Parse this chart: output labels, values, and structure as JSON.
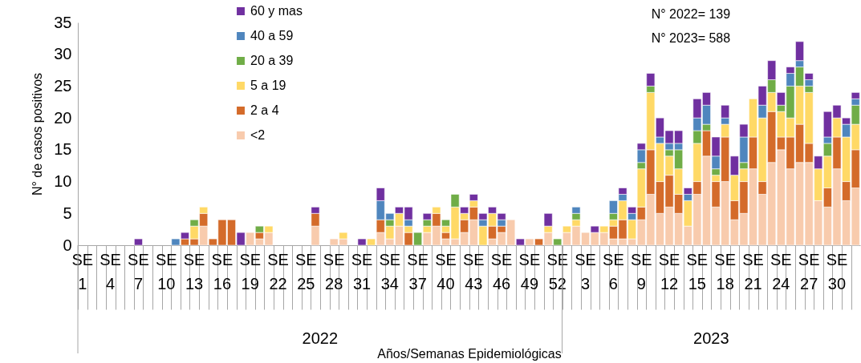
{
  "chart_data": {
    "type": "bar",
    "stacked": true,
    "ylabel": "N° de casos positivos",
    "xlabel": "Años/Semanas Epidemiológicas",
    "annotations": [
      "N° 2022= 139",
      "N° 2023= 588",
      "2022",
      "2023"
    ],
    "categories": [
      "SE 1",
      null,
      null,
      "SE 4",
      null,
      null,
      "SE 7",
      null,
      null,
      "SE 10",
      null,
      null,
      "SE 13",
      null,
      null,
      "SE 16",
      null,
      null,
      "SE 19",
      null,
      null,
      "SE 22",
      null,
      null,
      "SE 25",
      null,
      null,
      "SE 28",
      null,
      null,
      "SE 31",
      null,
      null,
      "SE 34",
      null,
      null,
      "SE 37",
      null,
      null,
      "SE 40",
      null,
      null,
      "SE 43",
      null,
      null,
      "SE 46",
      null,
      null,
      "SE 49",
      null,
      null,
      "SE 52",
      null,
      null,
      "SE 3",
      null,
      null,
      "SE 6",
      null,
      null,
      "SE 9",
      null,
      null,
      "SE 12",
      null,
      null,
      "SE 15",
      null,
      null,
      "SE 18",
      null,
      null,
      "SE 21",
      null,
      null,
      "SE 24",
      null,
      null,
      "SE 27",
      null,
      null,
      "SE 30",
      null,
      null
    ],
    "ylim": [
      0,
      35
    ],
    "yticks": [
      0,
      5,
      10,
      15,
      20,
      25,
      30,
      35
    ],
    "legend": "top left",
    "series": [
      {
        "name": "<2",
        "color": "#f8cbad",
        "values": [
          0,
          0,
          0,
          0,
          0,
          0,
          0,
          0,
          0,
          0,
          0,
          0,
          0,
          3,
          0,
          0,
          0,
          0,
          2,
          1,
          2,
          0,
          0,
          0,
          0,
          3,
          0,
          1,
          1,
          0,
          0,
          0,
          2,
          1,
          3,
          0,
          0,
          2,
          3,
          1,
          1,
          2,
          4,
          0,
          1,
          2,
          4,
          0,
          1,
          0,
          2,
          0,
          2,
          3,
          2,
          2,
          2,
          1,
          1,
          1,
          4,
          8,
          5,
          6,
          5,
          3,
          8,
          14,
          6,
          10,
          4,
          5,
          12,
          8,
          13,
          15,
          12,
          13,
          13,
          7,
          6,
          12,
          7,
          9
        ]
      },
      {
        "name": "2 a 4",
        "color": "#d46b2a",
        "values": [
          0,
          0,
          0,
          0,
          0,
          0,
          0,
          0,
          0,
          0,
          0,
          1,
          1,
          2,
          1,
          4,
          4,
          0,
          0,
          1,
          0,
          0,
          0,
          0,
          0,
          2,
          0,
          0,
          0,
          0,
          0,
          0,
          2,
          0,
          0,
          2,
          0,
          0,
          2,
          1,
          0,
          2,
          2,
          0,
          2,
          1,
          0,
          0,
          0,
          1,
          0,
          0,
          0,
          0,
          0,
          0,
          0,
          2,
          3,
          0,
          2,
          7,
          5,
          5,
          3,
          0,
          2,
          4,
          4,
          7,
          3,
          5,
          5,
          2,
          8,
          2,
          5,
          6,
          3,
          0,
          3,
          5,
          3,
          6
        ]
      },
      {
        "name": "5 a 19",
        "color": "#ffd966",
        "values": [
          0,
          0,
          0,
          0,
          0,
          0,
          0,
          0,
          0,
          0,
          0,
          0,
          2,
          1,
          0,
          0,
          0,
          0,
          0,
          0,
          1,
          0,
          0,
          0,
          0,
          0,
          0,
          0,
          1,
          0,
          0,
          1,
          0,
          2,
          2,
          1,
          0,
          1,
          1,
          1,
          5,
          1,
          1,
          3,
          2,
          0,
          0,
          0,
          0,
          0,
          1,
          0,
          1,
          1,
          0,
          0,
          1,
          1,
          3,
          3,
          6,
          9,
          6,
          3,
          4,
          4,
          6,
          0,
          1,
          2,
          4,
          2,
          6,
          10,
          3,
          4,
          3,
          6,
          8,
          5,
          5,
          3,
          7,
          4
        ]
      },
      {
        "name": "20 a 39",
        "color": "#70ad47",
        "values": [
          0,
          0,
          0,
          0,
          0,
          0,
          0,
          0,
          0,
          0,
          0,
          0,
          1,
          0,
          0,
          0,
          0,
          0,
          0,
          1,
          0,
          0,
          0,
          0,
          0,
          0,
          0,
          0,
          0,
          0,
          0,
          0,
          0,
          1,
          0,
          0,
          2,
          1,
          0,
          1,
          2,
          0,
          0,
          0,
          0,
          0,
          0,
          0,
          0,
          0,
          0,
          1,
          0,
          1,
          0,
          0,
          0,
          1,
          0,
          0,
          1,
          1,
          0,
          1,
          3,
          0,
          2,
          1,
          1,
          0,
          0,
          1,
          0,
          0,
          2,
          1,
          5,
          3,
          1,
          0,
          2,
          0,
          0,
          3
        ]
      },
      {
        "name": "40 a 59",
        "color": "#4f86be",
        "values": [
          0,
          0,
          0,
          0,
          0,
          0,
          0,
          0,
          0,
          0,
          1,
          0,
          0,
          0,
          0,
          0,
          0,
          0,
          0,
          0,
          0,
          0,
          0,
          0,
          0,
          0,
          0,
          0,
          0,
          0,
          0,
          0,
          3,
          1,
          0,
          1,
          0,
          0,
          0,
          0,
          0,
          0,
          0,
          1,
          0,
          1,
          0,
          0,
          0,
          0,
          0,
          0,
          0,
          1,
          0,
          0,
          0,
          2,
          1,
          1,
          2,
          0,
          1,
          1,
          1,
          1,
          2,
          3,
          2,
          1,
          0,
          4,
          0,
          2,
          0,
          0,
          2,
          1,
          1,
          0,
          1,
          0,
          2,
          1
        ]
      },
      {
        "name": "60 y mas",
        "color": "#7030a0",
        "values": [
          0,
          0,
          0,
          0,
          0,
          0,
          1,
          0,
          0,
          0,
          0,
          1,
          0,
          0,
          0,
          0,
          0,
          2,
          0,
          0,
          0,
          0,
          0,
          0,
          0,
          1,
          0,
          0,
          0,
          0,
          1,
          0,
          2,
          0,
          1,
          2,
          0,
          1,
          0,
          0,
          0,
          1,
          1,
          1,
          1,
          1,
          0,
          1,
          0,
          0,
          2,
          0,
          0,
          0,
          0,
          1,
          0,
          0,
          1,
          1,
          1,
          2,
          3,
          2,
          2,
          1,
          3,
          2,
          3,
          2,
          3,
          2,
          0,
          3,
          3,
          2,
          1,
          3,
          1,
          2,
          4,
          2,
          1,
          1
        ]
      }
    ]
  }
}
